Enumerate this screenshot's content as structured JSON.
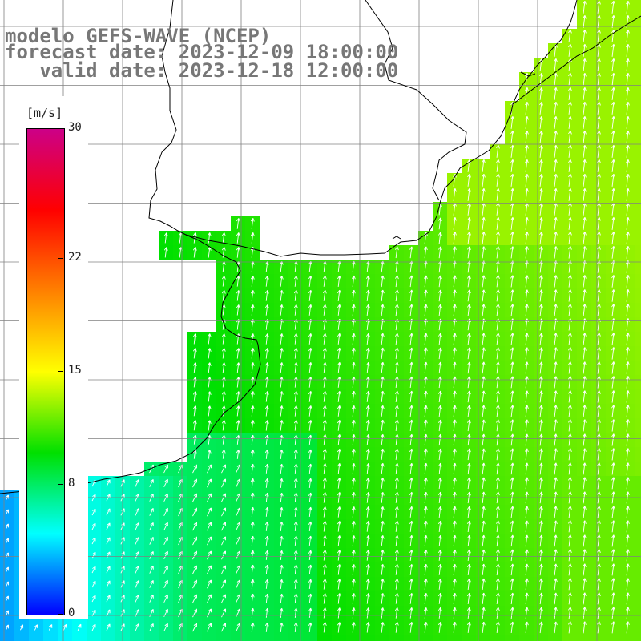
{
  "header": {
    "model_line": "modelo GEFS-WAVE (NCEP)",
    "forecast_line": "forecast date: 2023-12-09 18:00:00",
    "valid_line": "   valid date: 2023-12-18 12:00:00"
  },
  "colorbar": {
    "unit": "[m/s]",
    "ticks": [
      {
        "label": "30",
        "value": 30
      },
      {
        "label": "22",
        "value": 22
      },
      {
        "label": "15",
        "value": 15
      },
      {
        "label": "8",
        "value": 8
      },
      {
        "label": "0",
        "value": 0
      }
    ],
    "range": [
      0,
      30
    ],
    "colors": [
      "#0000ff",
      "#00ffff",
      "#00e000",
      "#ffff00",
      "#ff8000",
      "#ff0000",
      "#cc0088"
    ]
  },
  "map": {
    "land_color": "#ffffff",
    "coastline_color": "#000000",
    "grid_color": "#808080",
    "arrow_color": "#ffffff",
    "arrow_direction": "towards north / north-north-east",
    "grid": true
  },
  "chart_data": {
    "type": "heatmap",
    "title": "",
    "variable": "wind speed",
    "unit": "m/s",
    "scale_range": [
      0,
      30
    ],
    "regions": [
      {
        "region": "north-east offshore",
        "approx_speed": 13
      },
      {
        "region": "central offshore",
        "approx_speed": 10
      },
      {
        "region": "near-shore band",
        "approx_speed": 8
      },
      {
        "region": "south-west nearshore",
        "approx_speed": 4
      },
      {
        "region": "south-east offshore",
        "approx_speed": 12
      }
    ]
  }
}
